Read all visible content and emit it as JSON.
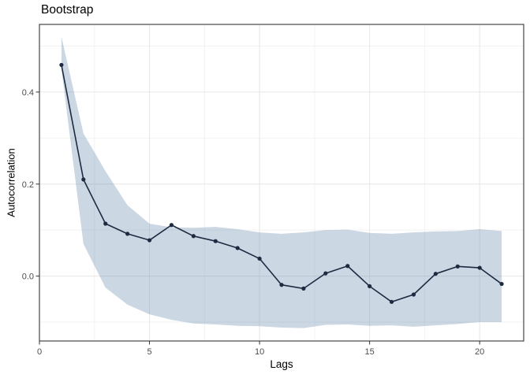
{
  "chart_data": {
    "type": "line",
    "title": "Bootstrap",
    "xlabel": "Lags",
    "ylabel": "Autocorrelation",
    "x": [
      1,
      2,
      3,
      4,
      5,
      6,
      7,
      8,
      9,
      10,
      11,
      12,
      13,
      14,
      15,
      16,
      17,
      18,
      19,
      20,
      21
    ],
    "series": [
      {
        "name": "autocorrelation",
        "values": [
          0.459,
          0.21,
          0.114,
          0.092,
          0.078,
          0.111,
          0.087,
          0.076,
          0.061,
          0.038,
          -0.019,
          -0.027,
          0.006,
          0.022,
          -0.022,
          -0.056,
          -0.04,
          0.005,
          0.021,
          0.018,
          -0.017
        ]
      },
      {
        "name": "ribbon_upper",
        "values": [
          0.52,
          0.31,
          0.228,
          0.154,
          0.114,
          0.106,
          0.105,
          0.107,
          0.102,
          0.095,
          0.092,
          0.095,
          0.1,
          0.101,
          0.094,
          0.092,
          0.095,
          0.097,
          0.098,
          0.102,
          0.098
        ]
      },
      {
        "name": "ribbon_lower",
        "values": [
          0.45,
          0.07,
          -0.025,
          -0.062,
          -0.083,
          -0.095,
          -0.103,
          -0.105,
          -0.108,
          -0.109,
          -0.112,
          -0.113,
          -0.106,
          -0.105,
          -0.108,
          -0.107,
          -0.11,
          -0.107,
          -0.104,
          -0.1,
          -0.1
        ]
      }
    ],
    "xlim": [
      0,
      22
    ],
    "ylim": [
      -0.141,
      0.547
    ],
    "x_ticks": {
      "major": [
        0,
        5,
        10,
        15,
        20
      ],
      "labels": [
        "0",
        "5",
        "10",
        "15",
        "20"
      ],
      "minor": [
        2.5,
        7.5,
        12.5,
        17.5
      ]
    },
    "y_ticks": {
      "major": [
        0,
        0.2,
        0.4
      ],
      "labels": [
        "0.0",
        "0.2",
        "0.4"
      ],
      "minor": [
        -0.1,
        0.1,
        0.3,
        0.5
      ]
    },
    "grid": "major+minor",
    "legend": "none",
    "colors": {
      "line": "#1e2a40",
      "point": "#1e2a40",
      "ribbon": "rgba(105,139,176,0.35)",
      "panel_bg": "#ffffff",
      "panel_border": "#474747",
      "grid_major": "#e6e6e6",
      "grid_minor": "#f2f2f2",
      "tick_mark": "#333333",
      "tick_label": "#4d4d4d"
    }
  }
}
